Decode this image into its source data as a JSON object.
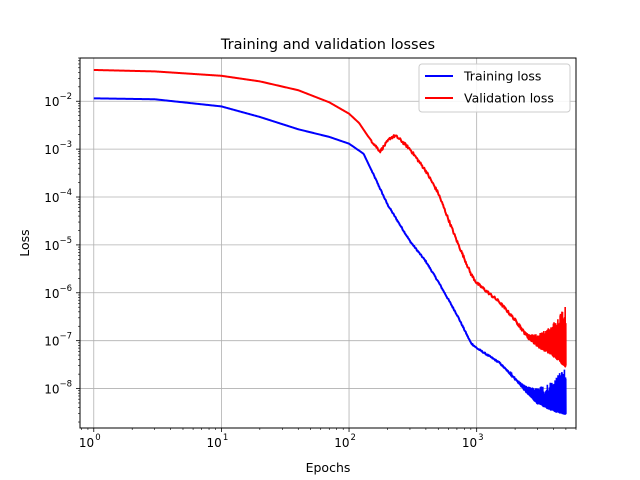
{
  "chart_data": {
    "type": "line",
    "title": "Training and validation losses",
    "xlabel": "Epochs",
    "ylabel": "Loss",
    "xscale": "log",
    "yscale": "log",
    "xlim": [
      0.78,
      6000
    ],
    "ylim": [
      1.5e-09,
      0.08
    ],
    "xticks": [
      {
        "value": 1,
        "label": "10",
        "exp": "0"
      },
      {
        "value": 10,
        "label": "10",
        "exp": "1"
      },
      {
        "value": 100,
        "label": "10",
        "exp": "2"
      },
      {
        "value": 1000,
        "label": "10",
        "exp": "3"
      }
    ],
    "yticks": [
      {
        "value": 1e-08,
        "label": "10",
        "exp": "−8"
      },
      {
        "value": 1e-07,
        "label": "10",
        "exp": "−7"
      },
      {
        "value": 1e-06,
        "label": "10",
        "exp": "−6"
      },
      {
        "value": 1e-05,
        "label": "10",
        "exp": "−5"
      },
      {
        "value": 0.0001,
        "label": "10",
        "exp": "−4"
      },
      {
        "value": 0.001,
        "label": "10",
        "exp": "−3"
      },
      {
        "value": 0.01,
        "label": "10",
        "exp": "−2"
      }
    ],
    "grid": true,
    "legend_position": "top-right",
    "series": [
      {
        "name": "Training loss",
        "color": "#0000ff",
        "x": [
          1,
          3,
          10,
          20,
          40,
          70,
          100,
          130,
          160,
          200,
          300,
          400,
          500,
          700,
          900,
          1000,
          1500,
          2000,
          2500,
          3000,
          4000,
          5000
        ],
        "y": [
          0.0115,
          0.011,
          0.0078,
          0.0047,
          0.0026,
          0.0018,
          0.0013,
          0.0008,
          0.00025,
          7e-05,
          1.2e-05,
          4.5e-06,
          1.7e-06,
          3.5e-07,
          9e-08,
          7e-08,
          3.5e-08,
          1.6e-08,
          8e-09,
          5e-09,
          3.5e-09,
          3e-09
        ],
        "noise_x": [
          1500,
          5000
        ],
        "noise_y": [
          2.5e-09,
          3e-08
        ]
      },
      {
        "name": "Validation loss",
        "color": "#ff0000",
        "x": [
          1,
          3,
          10,
          20,
          40,
          70,
          100,
          120,
          140,
          160,
          175,
          190,
          210,
          230,
          250,
          300,
          400,
          500,
          700,
          900,
          1000,
          1500,
          2000,
          2500,
          3000,
          4000,
          5000
        ],
        "y": [
          0.045,
          0.042,
          0.034,
          0.026,
          0.017,
          0.0095,
          0.0055,
          0.0035,
          0.0019,
          0.0012,
          0.0009,
          0.0012,
          0.0017,
          0.0019,
          0.0016,
          0.001,
          0.00035,
          0.00012,
          1.2e-05,
          2.5e-06,
          1.6e-06,
          6.5e-07,
          2.7e-07,
          1.2e-07,
          8e-08,
          5e-08,
          3e-08
        ],
        "noise_x": [
          2000,
          5000
        ],
        "noise_y": [
          8e-09,
          6e-07
        ]
      }
    ]
  }
}
